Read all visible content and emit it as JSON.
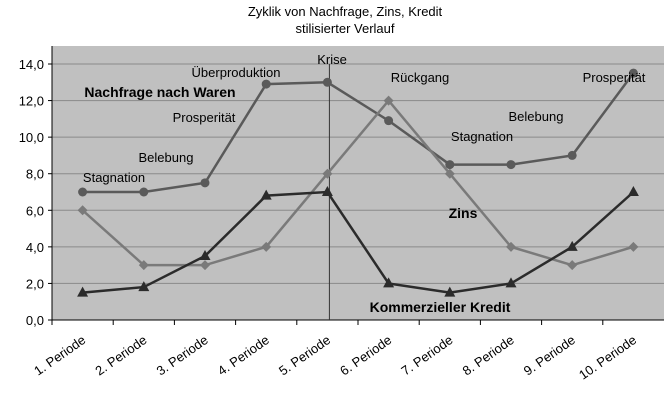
{
  "chart_data": {
    "type": "line",
    "title": "Zyklik von Nachfrage, Zins, Kredit",
    "subtitle": "stilisierter Verlauf",
    "categories": [
      "1. Periode",
      "2. Periode",
      "3. Periode",
      "4. Periode",
      "5. Periode",
      "6. Periode",
      "7. Periode",
      "8. Periode",
      "9. Periode",
      "10. Periode"
    ],
    "series": [
      {
        "name": "Nachfrage nach Waren",
        "color": "#5a5a5a",
        "marker": "circle",
        "values": [
          7,
          7,
          7.5,
          12.9,
          13,
          10.9,
          8.5,
          8.5,
          9,
          13.5
        ]
      },
      {
        "name": "Zins",
        "color": "#7a7a7a",
        "marker": "diamond",
        "values": [
          6,
          3,
          3,
          4,
          8,
          12,
          8,
          4,
          3,
          4
        ]
      },
      {
        "name": "Kommerzieller Kredit",
        "color": "#2b2b2b",
        "marker": "triangle",
        "values": [
          1.5,
          1.8,
          3.5,
          6.8,
          7,
          2,
          1.5,
          2,
          4,
          7
        ]
      }
    ],
    "annotations": [
      "Stagnation",
      "Belebung",
      "Prosperität",
      "Überproduktion",
      "Krise",
      "Rückgang",
      "Stagnation",
      "Belebung",
      "Prosperität"
    ],
    "ylim": [
      0,
      14
    ],
    "yticks": [
      {
        "value": 0,
        "label": "0,0"
      },
      {
        "value": 2,
        "label": "2,0"
      },
      {
        "value": 4,
        "label": "4,0"
      },
      {
        "value": 6,
        "label": "6,0"
      },
      {
        "value": 8,
        "label": "8,0"
      },
      {
        "value": 10,
        "label": "10,0"
      },
      {
        "value": 12,
        "label": "12,0"
      },
      {
        "value": 14,
        "label": "14,0"
      }
    ],
    "grid": true
  }
}
